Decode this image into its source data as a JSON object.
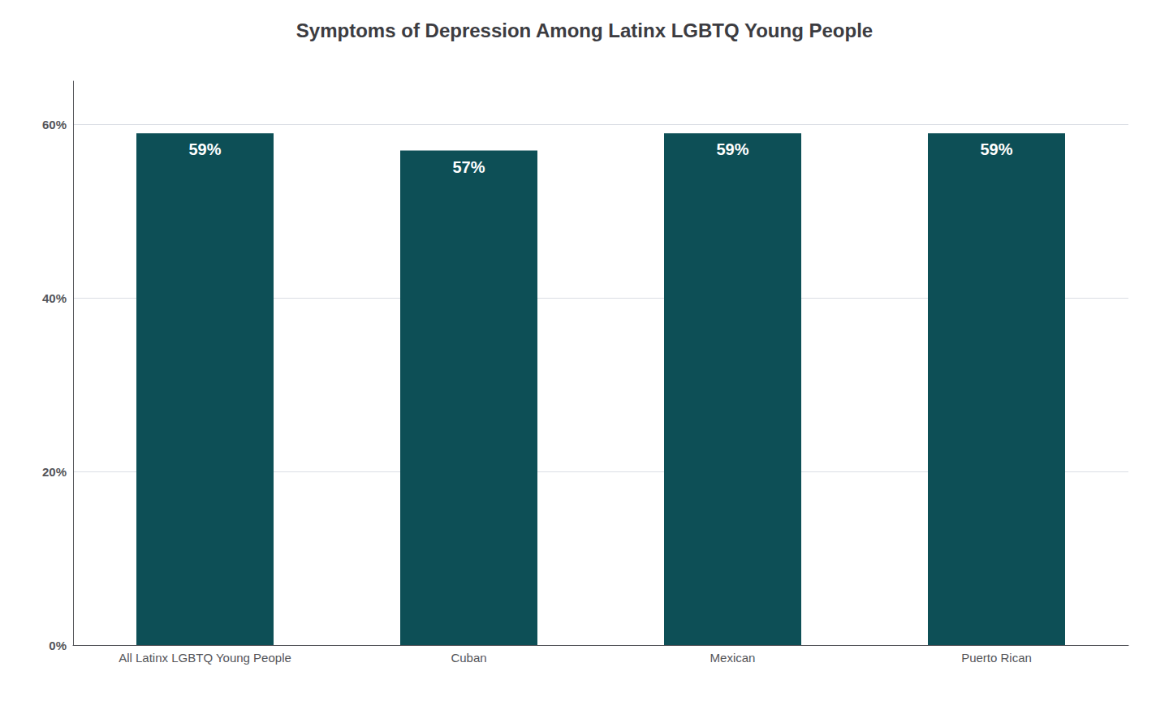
{
  "chart_data": {
    "type": "bar",
    "title": "Symptoms of Depression Among Latinx LGBTQ Young People",
    "categories": [
      "All Latinx LGBTQ Young People",
      "Cuban",
      "Mexican",
      "Puerto Rican"
    ],
    "values": [
      59,
      57,
      59,
      59
    ],
    "value_labels": [
      "59%",
      "57%",
      "59%",
      "59%"
    ],
    "data_labels": true,
    "color": "#0d4f56",
    "ylim": [
      0,
      65
    ],
    "yticks": [
      {
        "value": 0,
        "label": "0%"
      },
      {
        "value": 20,
        "label": "20%"
      },
      {
        "value": 40,
        "label": "40%"
      },
      {
        "value": 60,
        "label": "60%"
      }
    ],
    "grid": true
  }
}
